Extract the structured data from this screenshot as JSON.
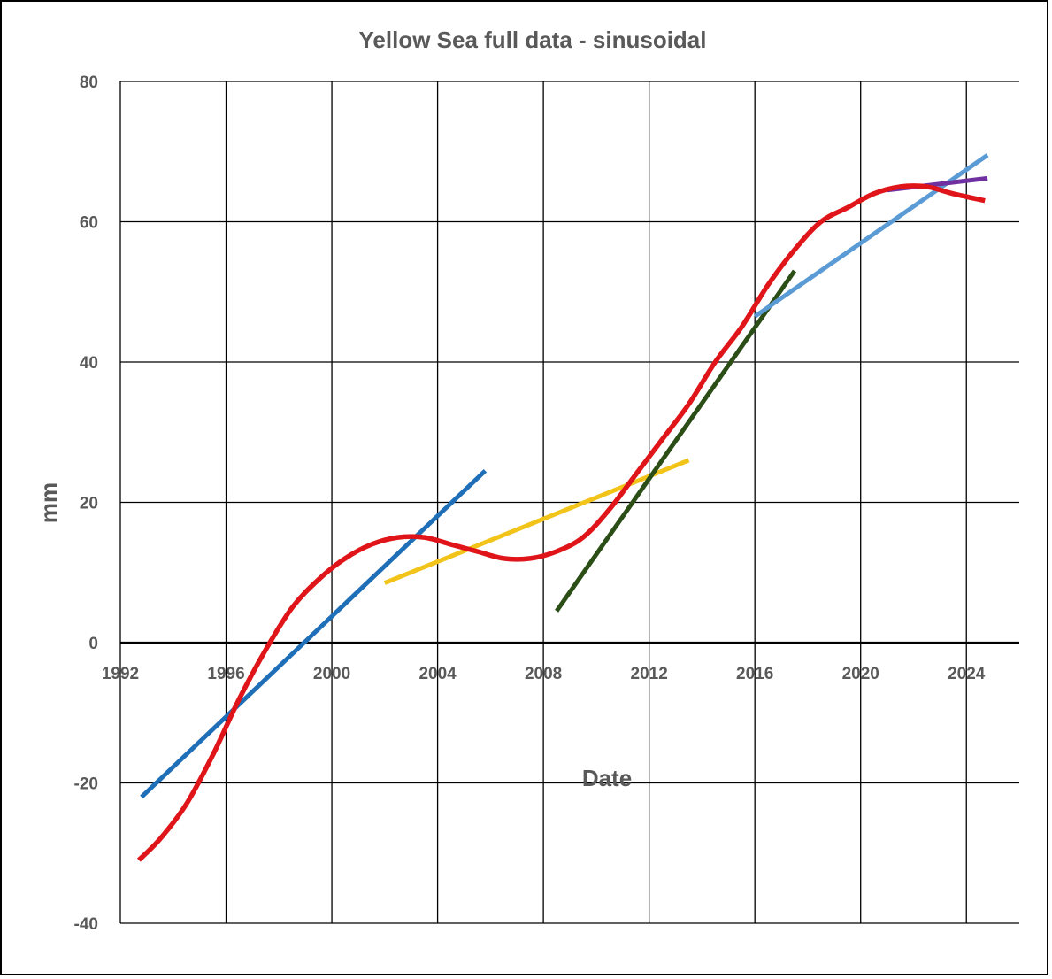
{
  "chart_data": {
    "type": "line",
    "title": "Yellow Sea full data - sinusoidal",
    "xlabel": "Date",
    "ylabel": "mm",
    "xlim": [
      1992,
      2026
    ],
    "ylim": [
      -40,
      80
    ],
    "xticks": [
      1992,
      1996,
      2000,
      2004,
      2008,
      2012,
      2016,
      2020,
      2024
    ],
    "yticks": [
      -40,
      -20,
      0,
      20,
      40,
      60,
      80
    ],
    "grid": true,
    "series": [
      {
        "color": "#e0151a",
        "x": [
          1992.7,
          1993.5,
          1994.5,
          1995.5,
          1996.5,
          1997.5,
          1998.5,
          1999.5,
          2000.5,
          2001.5,
          2002.5,
          2003.5,
          2004.5,
          2005.5,
          2006.5,
          2007.5,
          2008.5,
          2009.5,
          2010.5,
          2011.5,
          2012.5,
          2013.5,
          2014.5,
          2015.5,
          2016.5,
          2017.5,
          2018.5,
          2019.5,
          2020.5,
          2021.5,
          2022.5,
          2023.5,
          2024.7
        ],
        "y": [
          -31,
          -28,
          -23,
          -16,
          -8,
          -1,
          5,
          9,
          12,
          14,
          15,
          15,
          14,
          13,
          12,
          12,
          13,
          15,
          19,
          24,
          29,
          34,
          40,
          45,
          51,
          56,
          60,
          62,
          64,
          65,
          65,
          64,
          63
        ]
      },
      {
        "color": "#1f6fb8",
        "x": [
          1992.8,
          2005.8
        ],
        "y": [
          -22,
          24.5
        ]
      },
      {
        "color": "#f2c318",
        "x": [
          2002.0,
          2013.5
        ],
        "y": [
          8.5,
          26
        ]
      },
      {
        "color": "#2b4d16",
        "x": [
          2008.5,
          2017.5
        ],
        "y": [
          4.5,
          53
        ]
      },
      {
        "color": "#5b9bd5",
        "x": [
          2016.0,
          2024.8
        ],
        "y": [
          46.5,
          69.5
        ]
      },
      {
        "color": "#7030a0",
        "x": [
          2021.0,
          2024.8
        ],
        "y": [
          64.5,
          66.2
        ]
      }
    ]
  }
}
